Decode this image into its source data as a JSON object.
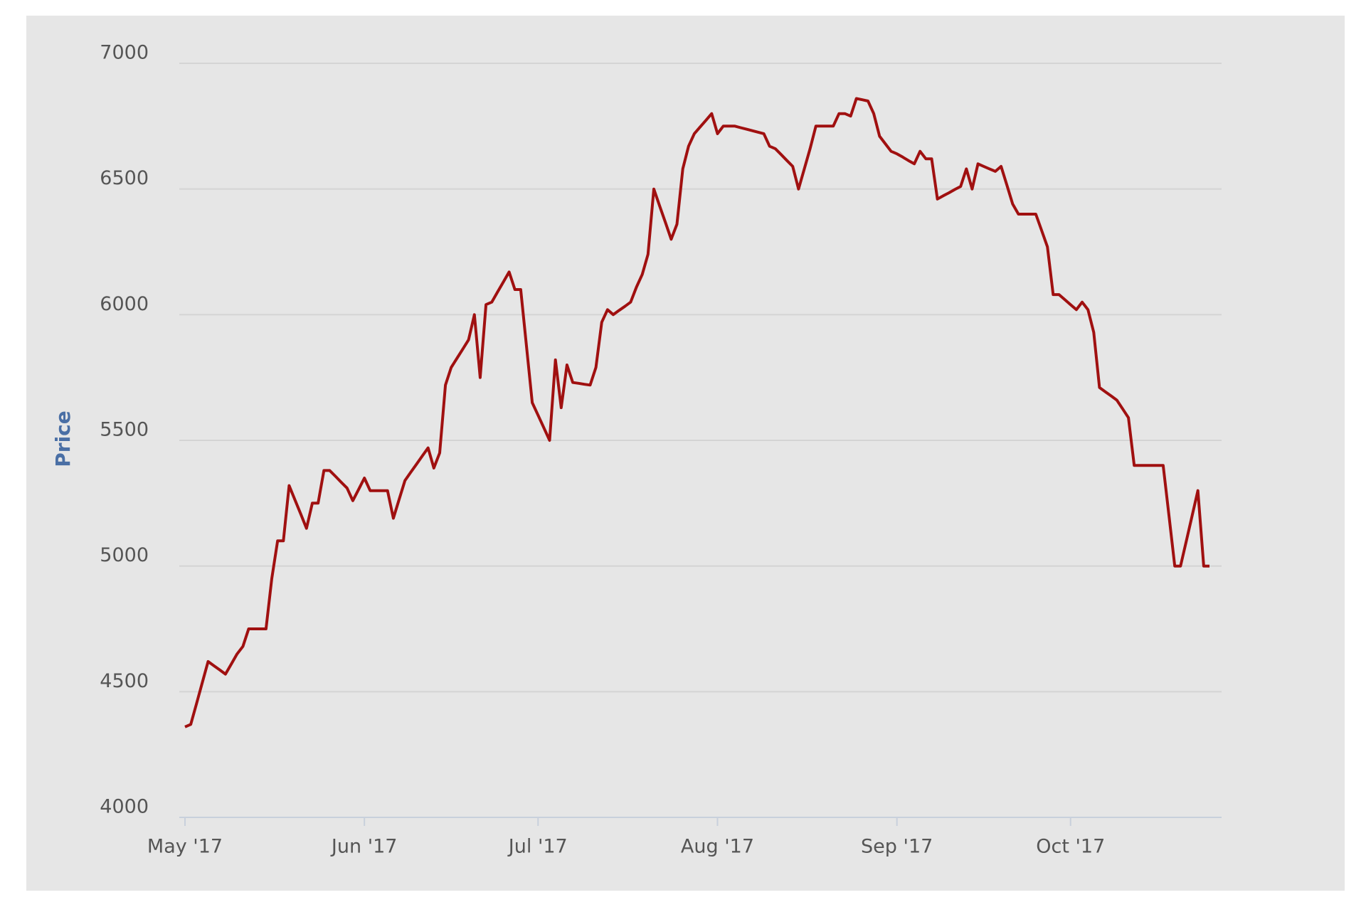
{
  "chart_data": {
    "type": "line",
    "y_label": "Price",
    "categories": [
      "May '17",
      null,
      null,
      null,
      null,
      null,
      null,
      null,
      null,
      null,
      null,
      null,
      null,
      null,
      null,
      null,
      null,
      null,
      null,
      null,
      null,
      null,
      null,
      null,
      null,
      null,
      null,
      null,
      null,
      null,
      null,
      "Jun '17",
      null,
      null,
      null,
      null,
      null,
      null,
      null,
      null,
      null,
      null,
      null,
      null,
      null,
      null,
      null,
      null,
      null,
      null,
      null,
      null,
      null,
      null,
      null,
      null,
      null,
      null,
      null,
      null,
      null,
      "Jul '17",
      null,
      null,
      null,
      null,
      null,
      null,
      null,
      null,
      null,
      null,
      null,
      null,
      null,
      null,
      null,
      null,
      null,
      null,
      null,
      null,
      null,
      null,
      null,
      null,
      null,
      null,
      null,
      null,
      null,
      null,
      "Aug '17",
      null,
      null,
      null,
      null,
      null,
      null,
      null,
      null,
      null,
      null,
      null,
      null,
      null,
      null,
      null,
      null,
      null,
      null,
      null,
      null,
      null,
      null,
      null,
      null,
      null,
      null,
      null,
      null,
      null,
      null,
      "Sep '17",
      null,
      null,
      null,
      null,
      null,
      null,
      null,
      null,
      null,
      null,
      null,
      null,
      null,
      null,
      null,
      null,
      null,
      null,
      null,
      null,
      null,
      null,
      null,
      null,
      null,
      null,
      null,
      null,
      null,
      "Oct '17",
      null,
      null,
      null,
      null,
      null,
      null,
      null,
      null,
      null,
      null,
      null,
      null,
      null,
      null,
      null,
      null,
      null,
      null,
      null,
      null,
      null,
      null,
      null,
      null
    ],
    "series": [
      {
        "color": "#a01010",
        "values": [
          4360,
          4370,
          4453,
          4537,
          4620,
          4603,
          4587,
          4570,
          4610,
          4650,
          4680,
          4750,
          4750,
          4750,
          4750,
          4950,
          5100,
          5100,
          5320,
          5263,
          5207,
          5150,
          5250,
          5250,
          5380,
          5380,
          5357,
          5333,
          5310,
          5260,
          5305,
          5350,
          5300,
          5300,
          5300,
          5300,
          5190,
          5265,
          5340,
          5373,
          5405,
          5438,
          5470,
          5390,
          5450,
          5720,
          5790,
          5827,
          5863,
          5900,
          6000,
          5750,
          6040,
          6050,
          6090,
          6130,
          6170,
          6100,
          6100,
          5875,
          5650,
          5600,
          5550,
          5500,
          5820,
          5630,
          5800,
          5730,
          5727,
          5723,
          5720,
          5790,
          5970,
          6020,
          6000,
          6017,
          6033,
          6050,
          6110,
          6160,
          6240,
          6500,
          6433,
          6367,
          6300,
          6360,
          6580,
          6670,
          6720,
          6747,
          6773,
          6800,
          6720,
          6750,
          6750,
          6750,
          6744,
          6738,
          6732,
          6726,
          6720,
          6670,
          6660,
          6637,
          6613,
          6590,
          6500,
          6580,
          6660,
          6750,
          6750,
          6750,
          6750,
          6800,
          6800,
          6790,
          6860,
          6855,
          6850,
          6800,
          6710,
          6680,
          6650,
          6640,
          6627,
          6613,
          6600,
          6650,
          6620,
          6620,
          6460,
          6473,
          6485,
          6498,
          6510,
          6580,
          6500,
          6600,
          6590,
          6580,
          6570,
          6590,
          6515,
          6440,
          6400,
          6400,
          6400,
          6400,
          6335,
          6270,
          6080,
          6080,
          6060,
          6040,
          6020,
          6050,
          6020,
          5930,
          5710,
          5693,
          5677,
          5660,
          5625,
          5590,
          5400,
          5400,
          5400,
          5400,
          5400,
          5400,
          5200,
          5000,
          5000,
          5100,
          5200,
          5300,
          5000,
          5000
        ]
      }
    ],
    "ylim": [
      4000,
      7000
    ],
    "yticks": [
      4000,
      4500,
      5000,
      5500,
      6000,
      6500,
      7000
    ],
    "grid": true
  }
}
